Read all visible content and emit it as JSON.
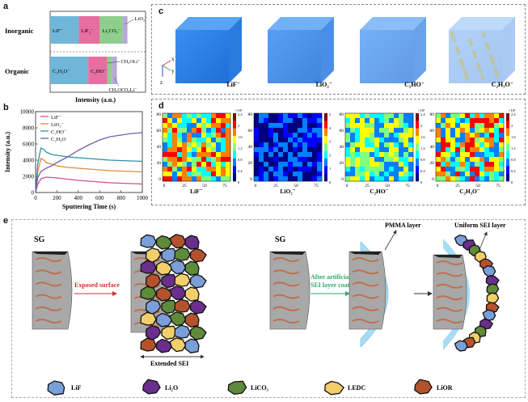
{
  "panel_a": {
    "label": "a",
    "rows": [
      {
        "name": "Inorganic",
        "segments": [
          {
            "label": "LiF⁻",
            "frac": 0.3,
            "color": "#6fb6d8"
          },
          {
            "label": "LiF₂⁻",
            "frac": 0.22,
            "color": "#e76ea0"
          },
          {
            "label": "Li₂CO₃⁻",
            "frac": 0.24,
            "color": "#8fce8c"
          },
          {
            "label": "",
            "frac": 0.05,
            "color": "#b7a8d8"
          }
        ],
        "callouts": [
          "LiO₂⁻"
        ]
      },
      {
        "name": "Organic",
        "segments": [
          {
            "label": "C₂H₃O⁻",
            "frac": 0.4,
            "color": "#6fb6d8"
          },
          {
            "label": "C₂HO⁻",
            "frac": 0.2,
            "color": "#e76ea0"
          },
          {
            "label": "",
            "frac": 0.05,
            "color": "#8fce8c"
          },
          {
            "label": "",
            "frac": 0.05,
            "color": "#b7a8d8"
          }
        ],
        "callouts": [
          "CH₃OLi⁻",
          "CH₃OCO₂Li⁻"
        ]
      }
    ],
    "xlabel": "Intensity (a.u.)"
  },
  "panel_b": {
    "label": "b",
    "chart_data": {
      "type": "line",
      "xlabel": "Sputtering Time (s)",
      "ylabel": "Intensity (a.u.)",
      "xlim": [
        0,
        1000
      ],
      "ylim": [
        0,
        10000
      ],
      "xticks": [
        0,
        200,
        400,
        600,
        800,
        1000
      ],
      "yticks": [
        0,
        2000,
        4000,
        6000,
        8000,
        10000
      ],
      "series": [
        {
          "name": "LiF⁻",
          "color": "#d0508a",
          "x": [
            0,
            20,
            50,
            100,
            150,
            200,
            300,
            400,
            500,
            600,
            700,
            800,
            900,
            1000
          ],
          "y": [
            0,
            1000,
            1700,
            1900,
            1850,
            1800,
            1650,
            1500,
            1400,
            1300,
            1200,
            1150,
            1100,
            1050
          ]
        },
        {
          "name": "LiO₂⁻",
          "color": "#e08a3a",
          "x": [
            0,
            20,
            50,
            80,
            100,
            150,
            200,
            300,
            400,
            500,
            600,
            700,
            800,
            900,
            1000
          ],
          "y": [
            0,
            2500,
            4200,
            4000,
            3700,
            3500,
            3300,
            3100,
            3000,
            2900,
            2800,
            2700,
            2650,
            2600,
            2550
          ]
        },
        {
          "name": "C₂HO⁻",
          "color": "#2f8fa8",
          "x": [
            0,
            20,
            50,
            80,
            100,
            150,
            200,
            300,
            400,
            500,
            600,
            700,
            800,
            900,
            1000
          ],
          "y": [
            0,
            3500,
            5500,
            5300,
            5000,
            4700,
            4600,
            4400,
            4300,
            4200,
            4100,
            4000,
            3950,
            3900,
            3850
          ]
        },
        {
          "name": "C₂H₃O",
          "color": "#7060b0",
          "x": [
            0,
            20,
            50,
            100,
            150,
            200,
            300,
            400,
            500,
            600,
            700,
            800,
            900,
            1000
          ],
          "y": [
            0,
            1800,
            2600,
            3000,
            3300,
            3700,
            4400,
            5200,
            5900,
            6500,
            6900,
            7100,
            7300,
            7400
          ]
        }
      ]
    }
  },
  "panel_c": {
    "label": "c",
    "cubes": [
      {
        "ion": "LiF⁻",
        "density": 1.0
      },
      {
        "ion": "LiO₂⁻",
        "density": 0.85
      },
      {
        "ion": "C₂HO⁻",
        "density": 0.7
      },
      {
        "ion": "C₂H₃O⁻",
        "density": 0.4
      }
    ],
    "axes": {
      "x": "x",
      "y": "y",
      "z": "z"
    }
  },
  "panel_d": {
    "label": "d",
    "maps": [
      {
        "ion": "LiF⁻",
        "scale_max": "×10²",
        "cb": [
          "2.4",
          "2",
          "1.6",
          "1.2",
          "0.8",
          "0.4",
          "0"
        ]
      },
      {
        "ion": "LiO₂⁻",
        "scale_max": "",
        "cb": [
          "5",
          "4",
          "3",
          "2",
          "1",
          "0"
        ]
      },
      {
        "ion": "C₂HO⁻",
        "scale_max": "×10²",
        "cb": [
          "2.4",
          "2",
          "1.6",
          "1.2",
          "0.8",
          "0.4",
          "0"
        ]
      },
      {
        "ion": "C₂H₃O⁻",
        "scale_max": "×10²",
        "cb": [
          "2.4",
          "2",
          "1.6",
          "1.2",
          "0.8",
          "0.4",
          "0"
        ]
      }
    ],
    "xticks": [
      "0",
      "25",
      "50",
      "75"
    ],
    "yticks": [
      "80",
      "60",
      "40",
      "20",
      "0"
    ]
  },
  "panel_e": {
    "label": "e",
    "left_title": "SG",
    "right_title": "SG",
    "arrow1_text": "Exposed surface",
    "arrow2_text": "After artificial\nSEI layer coating",
    "bottom_left": "Extended SEI",
    "pmma": "PMMA layer",
    "uniform": "Uniform SEI layer",
    "legend": [
      {
        "name": "LiF",
        "color": "#7a9ed8"
      },
      {
        "name": "Li₂O",
        "color": "#6a2f8c"
      },
      {
        "name": "LiCO₃",
        "color": "#5f8a3a"
      },
      {
        "name": "LEDC",
        "color": "#f2cf6a"
      },
      {
        "name": "LiOR",
        "color": "#b5522e"
      }
    ]
  }
}
